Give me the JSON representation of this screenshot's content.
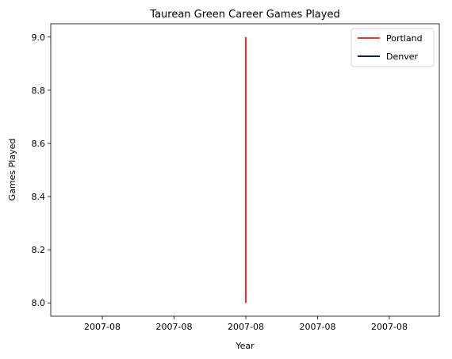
{
  "chart_data": {
    "type": "line",
    "title": "Taurean Green Career Games Played",
    "xlabel": "Year",
    "ylabel": "Games Played",
    "x_tick_labels": [
      "2007-08",
      "2007-08",
      "2007-08",
      "2007-08",
      "2007-08"
    ],
    "y_ticks": [
      8.0,
      8.2,
      8.4,
      8.6,
      8.8,
      9.0
    ],
    "y_tick_labels": [
      "8.0",
      "8.2",
      "8.4",
      "8.6",
      "8.8",
      "9.0"
    ],
    "ylim": [
      7.95,
      9.05
    ],
    "grid": false,
    "legend_position": "top-right",
    "series": [
      {
        "name": "Portland",
        "color": "#E03A3E",
        "x": [
          "2007-08",
          "2007-08"
        ],
        "y": [
          8,
          9
        ]
      },
      {
        "name": "Denver",
        "color": "#0E2240",
        "x": [],
        "y": []
      }
    ]
  }
}
